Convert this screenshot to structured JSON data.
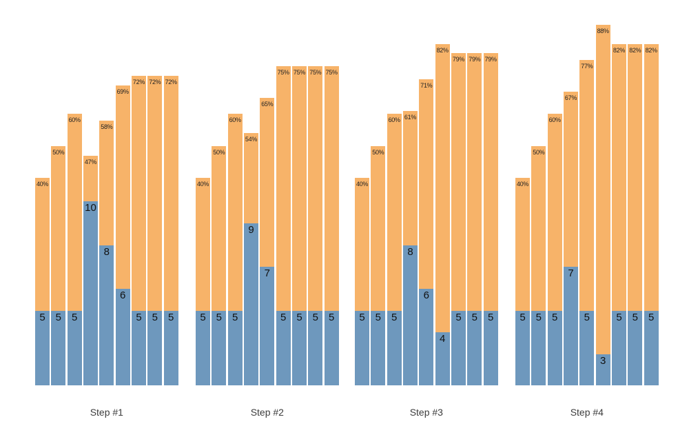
{
  "chart_data": {
    "type": "bar",
    "variant": "grouped-stacked-columns",
    "title": "",
    "axes": {
      "x_visible": false,
      "y_visible": false,
      "gridlines": false,
      "legend": "none"
    },
    "series_colors": {
      "bottom_segment_blue": "#6E98BD",
      "top_segment_orange": "#F7B369"
    },
    "label_colors": {
      "percent_label": "#222222",
      "value_label": "#111111",
      "step_label": "#3c3c3c"
    },
    "groups": [
      {
        "label": "Step #1",
        "bars": [
          {
            "value": 5,
            "value_label": "5",
            "percent": 40,
            "percent_label": "40%"
          },
          {
            "value": 5,
            "value_label": "5",
            "percent": 50,
            "percent_label": "50%"
          },
          {
            "value": 5,
            "value_label": "5",
            "percent": 60,
            "percent_label": "60%"
          },
          {
            "value": 10,
            "value_label": "10",
            "percent": 47,
            "percent_label": "47%"
          },
          {
            "value": 8,
            "value_label": "8",
            "percent": 58,
            "percent_label": "58%"
          },
          {
            "value": 6,
            "value_label": "6",
            "percent": 69,
            "percent_label": "69%"
          },
          {
            "value": 5,
            "value_label": "5",
            "percent": 72,
            "percent_label": "72%"
          },
          {
            "value": 5,
            "value_label": "5",
            "percent": 72,
            "percent_label": "72%"
          },
          {
            "value": 5,
            "value_label": "5",
            "percent": 72,
            "percent_label": "72%"
          }
        ]
      },
      {
        "label": "Step #2",
        "bars": [
          {
            "value": 5,
            "value_label": "5",
            "percent": 40,
            "percent_label": "40%"
          },
          {
            "value": 5,
            "value_label": "5",
            "percent": 50,
            "percent_label": "50%"
          },
          {
            "value": 5,
            "value_label": "5",
            "percent": 60,
            "percent_label": "60%"
          },
          {
            "value": 9,
            "value_label": "9",
            "percent": 54,
            "percent_label": "54%"
          },
          {
            "value": 7,
            "value_label": "7",
            "percent": 65,
            "percent_label": "65%"
          },
          {
            "value": 5,
            "value_label": "5",
            "percent": 75,
            "percent_label": "75%"
          },
          {
            "value": 5,
            "value_label": "5",
            "percent": 75,
            "percent_label": "75%"
          },
          {
            "value": 5,
            "value_label": "5",
            "percent": 75,
            "percent_label": "75%"
          },
          {
            "value": 5,
            "value_label": "5",
            "percent": 75,
            "percent_label": "75%"
          }
        ]
      },
      {
        "label": "Step #3",
        "bars": [
          {
            "value": 5,
            "value_label": "5",
            "percent": 40,
            "percent_label": "40%"
          },
          {
            "value": 5,
            "value_label": "5",
            "percent": 50,
            "percent_label": "50%"
          },
          {
            "value": 5,
            "value_label": "5",
            "percent": 60,
            "percent_label": "60%"
          },
          {
            "value": 8,
            "value_label": "8",
            "percent": 61,
            "percent_label": "61%"
          },
          {
            "value": 6,
            "value_label": "6",
            "percent": 71,
            "percent_label": "71%"
          },
          {
            "value": 4,
            "value_label": "4",
            "percent": 82,
            "percent_label": "82%"
          },
          {
            "value": 5,
            "value_label": "5",
            "percent": 79,
            "percent_label": "79%"
          },
          {
            "value": 5,
            "value_label": "5",
            "percent": 79,
            "percent_label": "79%"
          },
          {
            "value": 5,
            "value_label": "5",
            "percent": 79,
            "percent_label": "79%"
          }
        ]
      },
      {
        "label": "Step #4",
        "bars": [
          {
            "value": 5,
            "value_label": "5",
            "percent": 40,
            "percent_label": "40%"
          },
          {
            "value": 5,
            "value_label": "5",
            "percent": 50,
            "percent_label": "50%"
          },
          {
            "value": 5,
            "value_label": "5",
            "percent": 60,
            "percent_label": "60%"
          },
          {
            "value": 7,
            "value_label": "7",
            "percent": 67,
            "percent_label": "67%"
          },
          {
            "value": 5,
            "value_label": "5",
            "percent": 77,
            "percent_label": "77%"
          },
          {
            "value": 3,
            "value_label": "3",
            "percent": 88,
            "percent_label": "88%"
          },
          {
            "value": 5,
            "value_label": "5",
            "percent": 82,
            "percent_label": "82%"
          },
          {
            "value": 5,
            "value_label": "5",
            "percent": 82,
            "percent_label": "82%"
          },
          {
            "value": 5,
            "value_label": "5",
            "percent": 82,
            "percent_label": "82%"
          }
        ]
      }
    ]
  }
}
